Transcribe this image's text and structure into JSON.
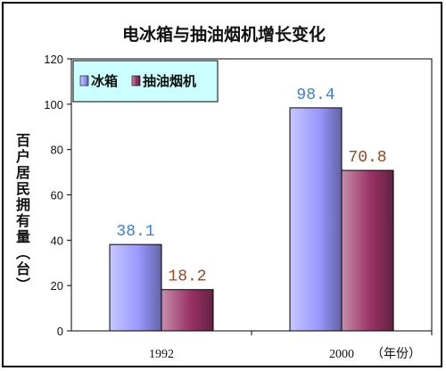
{
  "chart_data": {
    "type": "bar",
    "title": "电冰箱与抽油烟机增长变化",
    "ylabel": "百户居民拥有量（台）",
    "xunit": "（年份）",
    "categories": [
      "1992",
      "2000"
    ],
    "ylim": [
      0,
      120
    ],
    "yticks": [
      "0",
      "20",
      "40",
      "60",
      "80",
      "100",
      "120"
    ],
    "legend_position": "top-left",
    "grid": false,
    "series": [
      {
        "name": "冰箱",
        "values": [
          38.1,
          98.4
        ],
        "value_labels": [
          "38.1",
          "98.4"
        ],
        "color": "#9999ff",
        "label_color": "#3a7ee6"
      },
      {
        "name": "抽油烟机",
        "values": [
          18.2,
          70.8
        ],
        "value_labels": [
          "18.2",
          "70.8"
        ],
        "color": "#993366",
        "label_color": "#a0441c"
      }
    ],
    "colors": {
      "plot_background": "#ffffff",
      "legend_background": "#ccffff"
    }
  }
}
